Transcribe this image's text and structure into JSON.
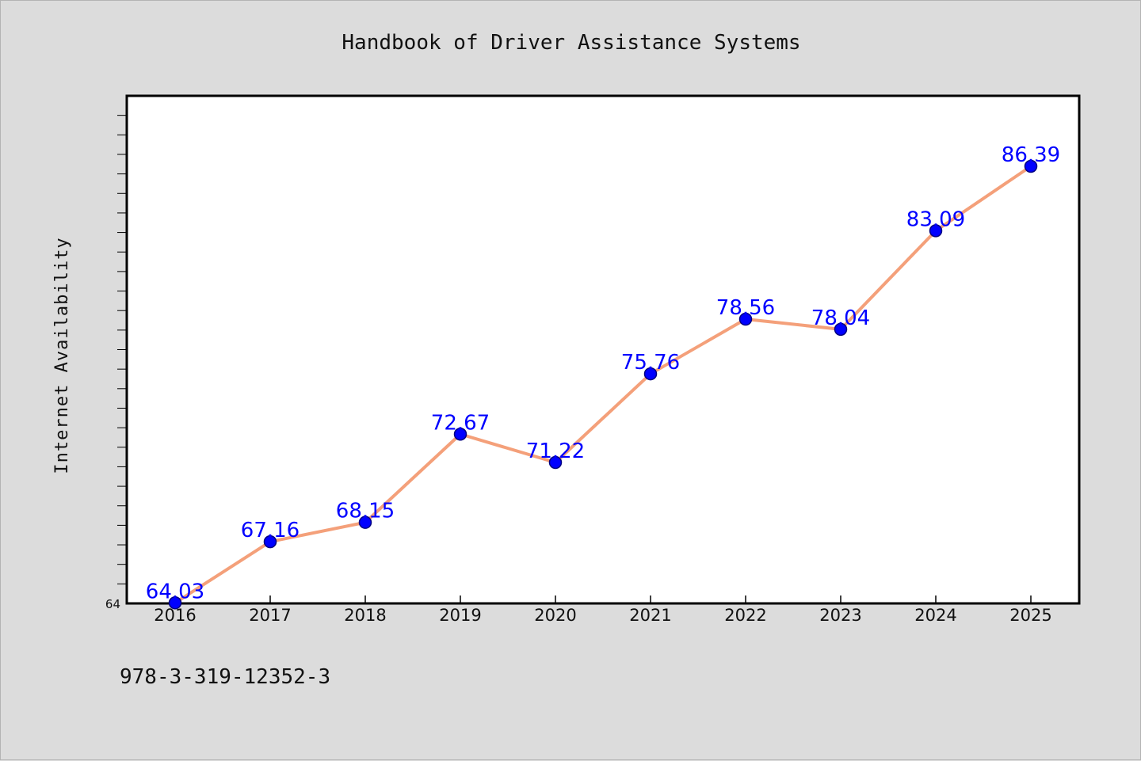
{
  "chart_data": {
    "type": "line",
    "title": "Handbook of Driver Assistance Systems",
    "xlabel": "",
    "ylabel": "Internet Availability",
    "categories": [
      "2016",
      "2017",
      "2018",
      "2019",
      "2020",
      "2021",
      "2022",
      "2023",
      "2024",
      "2025"
    ],
    "series": [
      {
        "values": [
          64.03,
          67.16,
          68.15,
          72.67,
          71.22,
          75.76,
          78.56,
          78.04,
          83.09,
          86.39
        ],
        "data_labels": [
          "64.03",
          "67.16",
          "68.15",
          "72.67",
          "71.22",
          "75.76",
          "78.56",
          "78.04",
          "83.09",
          "86.39"
        ]
      }
    ],
    "ylim": [
      64,
      90
    ],
    "ytick_labels": [
      "64"
    ],
    "grid": false,
    "colors": {
      "line": "#f4a07a",
      "marker_fill": "#0000ff",
      "marker_edge": "#000080",
      "data_label": "#0000ff",
      "background": "#dcdcdc",
      "plot_background": "#ffffff",
      "axes": "#000000"
    }
  },
  "footer": {
    "isbn": "978-3-319-12352-3"
  }
}
